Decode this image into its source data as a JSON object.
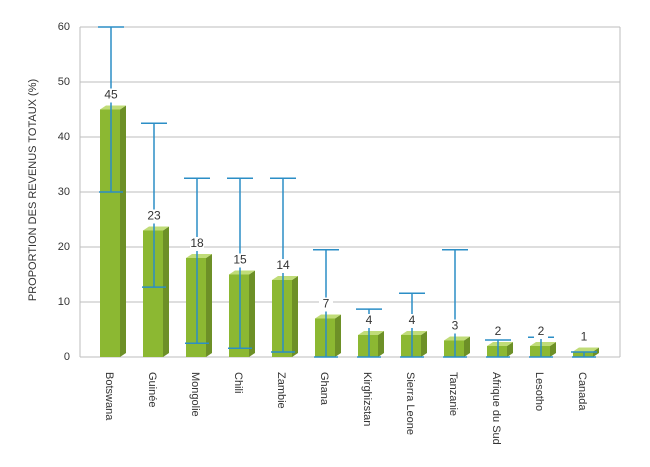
{
  "chart_data": {
    "type": "bar",
    "y_label": "PROPORTION DES REVENUS TOTAUX (%)",
    "categories": [
      "Botswana",
      "Guinée",
      "Mongolie",
      "Chili",
      "Zambie",
      "Ghana",
      "Kirghizstan",
      "Sierra Leone",
      "Tanzanie",
      "Afrique du Sud",
      "Lesotho",
      "Canada"
    ],
    "values": [
      45,
      23,
      18,
      15,
      14,
      7,
      4,
      4,
      3,
      2,
      2,
      1
    ],
    "error_low": [
      30,
      12.7,
      2.5,
      1.6,
      0.9,
      0,
      0,
      0,
      0,
      0,
      0,
      0
    ],
    "error_high": [
      60,
      42.5,
      32.5,
      32.5,
      32.5,
      19.5,
      8.7,
      11.6,
      19.5,
      3.1,
      3.6,
      0.9
    ],
    "color": "#8cb832",
    "error_color": "#2b8ec6",
    "ylim": [
      0,
      60
    ],
    "yticks": [
      0,
      10,
      20,
      30,
      40,
      50,
      60
    ],
    "grid": true
  }
}
